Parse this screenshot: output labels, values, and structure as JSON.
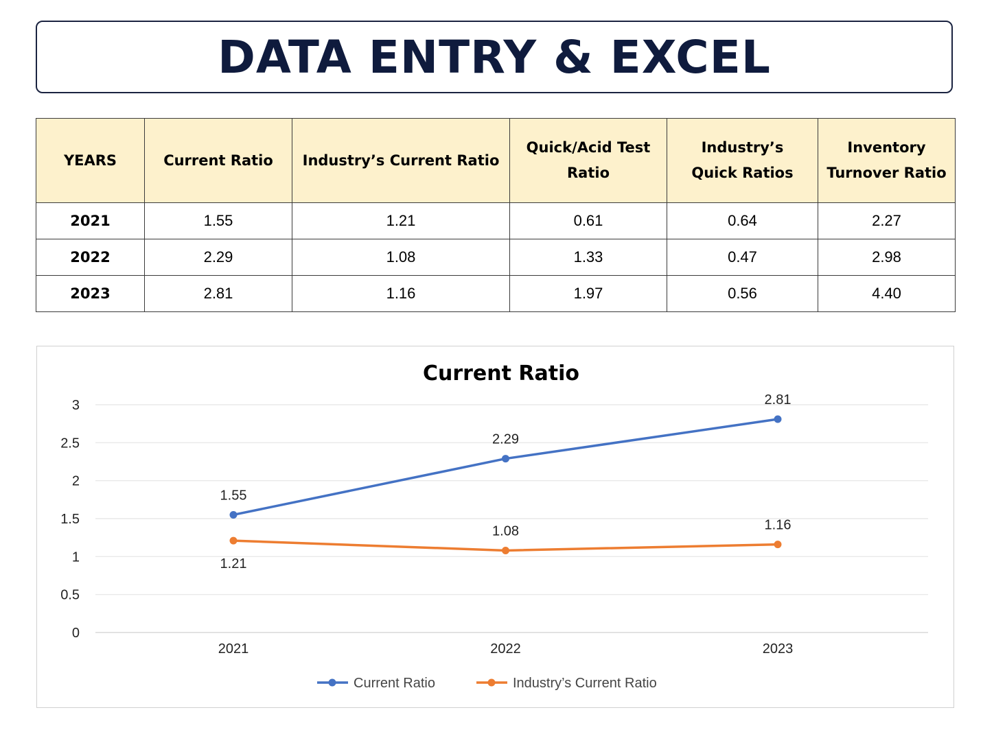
{
  "banner": {
    "title": "DATA ENTRY & EXCEL"
  },
  "table": {
    "headers": [
      "YEARS",
      "Current Ratio",
      "Industry’s Current Ratio",
      "Quick/Acid Test Ratio",
      "Industry’s Quick Ratios",
      "Inventory Turnover Ratio"
    ],
    "rows": [
      [
        "2021",
        "1.55",
        "1.21",
        "0.61",
        "0.64",
        "2.27"
      ],
      [
        "2022",
        "2.29",
        "1.08",
        "1.33",
        "0.47",
        "2.98"
      ],
      [
        "2023",
        "2.81",
        "1.16",
        "1.97",
        "0.56",
        "4.40"
      ]
    ]
  },
  "chart_data": {
    "type": "line",
    "title": "Current Ratio",
    "categories": [
      "2021",
      "2022",
      "2023"
    ],
    "series": [
      {
        "name": "Current Ratio",
        "values": [
          1.55,
          2.29,
          2.81
        ],
        "color": "#4472c4",
        "label_position": "above"
      },
      {
        "name": "Industry’s Current Ratio",
        "values": [
          1.21,
          1.08,
          1.16
        ],
        "color": "#ed7d31",
        "label_position": "mixed"
      }
    ],
    "yticks": [
      "0",
      "0.5",
      "1",
      "1.5",
      "2",
      "2.5",
      "3"
    ],
    "ylim": [
      0,
      3
    ],
    "grid": true,
    "legend": "bottom",
    "xlabel": "",
    "ylabel": ""
  }
}
